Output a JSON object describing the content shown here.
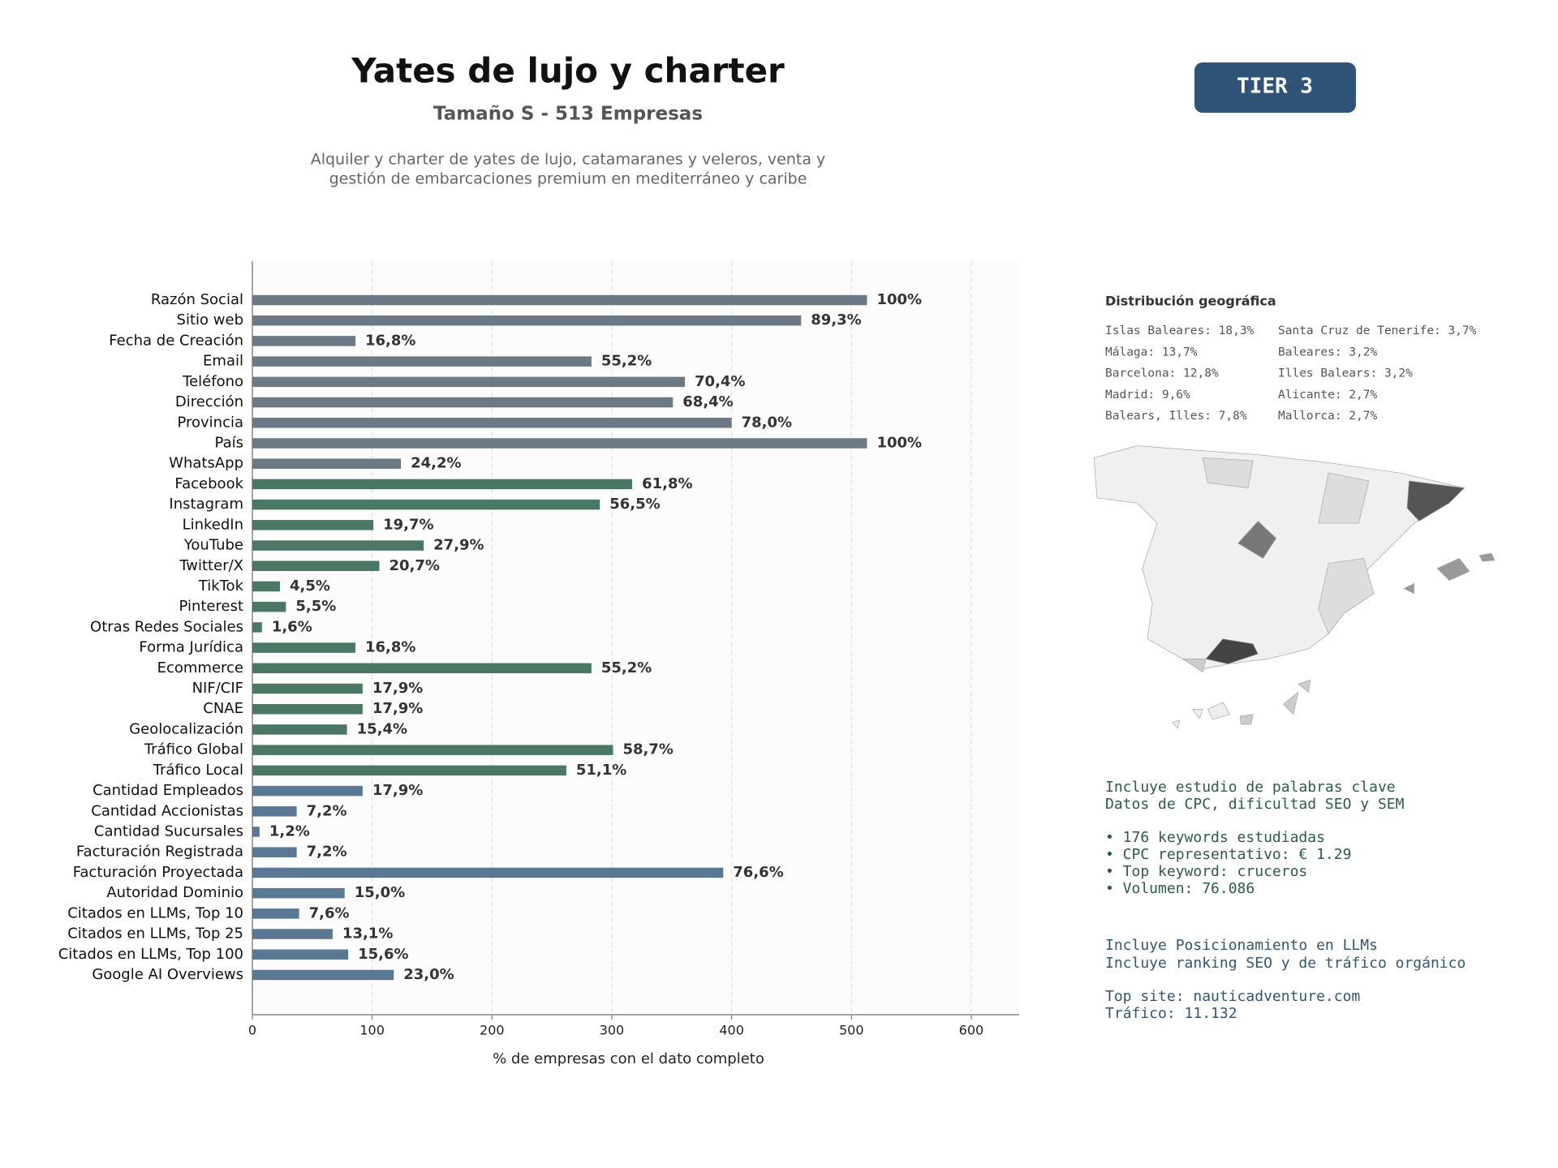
{
  "header": {
    "title": "Yates de lujo y charter",
    "subtitle": "Tamaño S - 513 Empresas",
    "description": [
      "Alquiler y charter de yates de lujo, catamaranes y veleros, venta y",
      "gestión de embarcaciones premium en mediterráneo y caribe"
    ],
    "badge": "TIER 3"
  },
  "chart_data": {
    "type": "bar",
    "orientation": "horizontal",
    "categories": [
      "Razón Social",
      "Sitio web",
      "Fecha de Creación",
      "Email",
      "Teléfono",
      "Dirección",
      "Provincia",
      "País",
      "WhatsApp",
      "Facebook",
      "Instagram",
      "LinkedIn",
      "YouTube",
      "Twitter/X",
      "TikTok",
      "Pinterest",
      "Otras Redes Sociales",
      "Forma Jurídica",
      "Ecommerce",
      "NIF/CIF",
      "CNAE",
      "Geolocalización",
      "Tráfico Global",
      "Tráfico Local",
      "Cantidad Empleados",
      "Cantidad Accionistas",
      "Cantidad Sucursales",
      "Facturación Registrada",
      "Facturación Proyectada",
      "Autoridad Dominio",
      "Citados en LLMs, Top 10",
      "Citados en LLMs, Top 25",
      "Citados en LLMs, Top 100",
      "Google AI Overviews"
    ],
    "values": [
      513,
      458,
      86,
      283,
      361,
      351,
      400,
      513,
      124,
      317,
      290,
      101,
      143,
      106,
      23,
      28,
      8,
      86,
      283,
      92,
      92,
      79,
      301,
      262,
      92,
      37,
      6,
      37,
      393,
      77,
      39,
      67,
      80,
      118
    ],
    "value_labels": [
      "100%",
      "89,3%",
      "16,8%",
      "55,2%",
      "70,4%",
      "68,4%",
      "78,0%",
      "100%",
      "24,2%",
      "61,8%",
      "56,5%",
      "19,7%",
      "27,9%",
      "20,7%",
      "4,5%",
      "5,5%",
      "1,6%",
      "16,8%",
      "55,2%",
      "17,9%",
      "17,9%",
      "15,4%",
      "58,7%",
      "51,1%",
      "17,9%",
      "7,2%",
      "1,2%",
      "7,2%",
      "76,6%",
      "15,0%",
      "7,6%",
      "13,1%",
      "15,6%",
      "23,0%"
    ],
    "colors": [
      "#6c7883",
      "#6c7883",
      "#6c7883",
      "#6c7883",
      "#6c7883",
      "#6c7883",
      "#6c7883",
      "#6c7883",
      "#6c7883",
      "#4a7864",
      "#4a7864",
      "#4a7864",
      "#4a7864",
      "#4a7864",
      "#4a7864",
      "#4a7864",
      "#4a7864",
      "#4a7864",
      "#4a7864",
      "#4a7864",
      "#4a7864",
      "#4a7864",
      "#4a7864",
      "#4a7864",
      "#5a7794",
      "#5a7794",
      "#5a7794",
      "#5a7794",
      "#5a7794",
      "#5a7794",
      "#5a7794",
      "#5a7794",
      "#5a7794",
      "#5a7794"
    ],
    "xlim": [
      0,
      640
    ],
    "xticks": [
      0,
      100,
      200,
      300,
      400,
      500,
      600
    ],
    "xlabel": "% de empresas con el dato completo",
    "grid": true
  },
  "geo": {
    "title": "Distribución geográfica",
    "items": [
      "Islas Baleares: 18,3%",
      "Málaga: 13,7%",
      "Barcelona: 12,8%",
      "Madrid: 9,6%",
      "Balears, Illes: 7,8%",
      "Santa Cruz de Tenerife: 3,7%",
      "Baleares: 3,2%",
      "Illes Balears: 3,2%",
      "Alicante: 2,7%",
      "Mallorca: 2,7%"
    ]
  },
  "notes": [
    [
      "Incluye estudio de palabras clave",
      "Datos de CPC, dificultad SEO y SEM",
      "• 176 keywords estudiadas",
      "• CPC representativo: € 1.29",
      "• Top keyword: cruceros",
      "• Volumen: 76.086"
    ],
    [
      "Incluye Posicionamiento en LLMs",
      "Incluye ranking SEO y de tráfico orgánico",
      "Top site: nauticadventure.com",
      "Tráfico: 11.132"
    ]
  ]
}
